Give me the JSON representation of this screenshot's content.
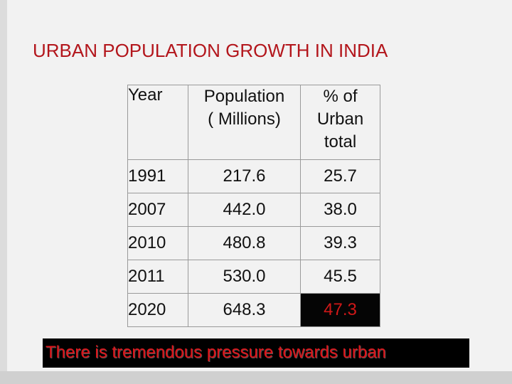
{
  "title": "URBAN POPULATION GROWTH IN  INDIA",
  "table": {
    "headers": {
      "year": "Year",
      "population_line1": "Population",
      "population_line2": "( Millions)",
      "percent_line1": "% of",
      "percent_line2": "Urban",
      "percent_line3": "total"
    },
    "rows": [
      {
        "year": "1991",
        "population": "217.6",
        "percent": "25.7"
      },
      {
        "year": "2007",
        "population": "442.0",
        "percent": "38.0"
      },
      {
        "year": "2010",
        "population": "480.8",
        "percent": "39.3"
      },
      {
        "year": "2011",
        "population": "530.0",
        "percent": "45.5"
      },
      {
        "year": "2020",
        "population": "648.3",
        "percent": "47.3"
      }
    ]
  },
  "footer": "There is tremendous pressure towards urban",
  "colors": {
    "title": "#b3161c",
    "highlight_bg": "#050505",
    "highlight_text": "#d01818",
    "footer_bg": "#000000",
    "footer_text": "#e0141a"
  }
}
